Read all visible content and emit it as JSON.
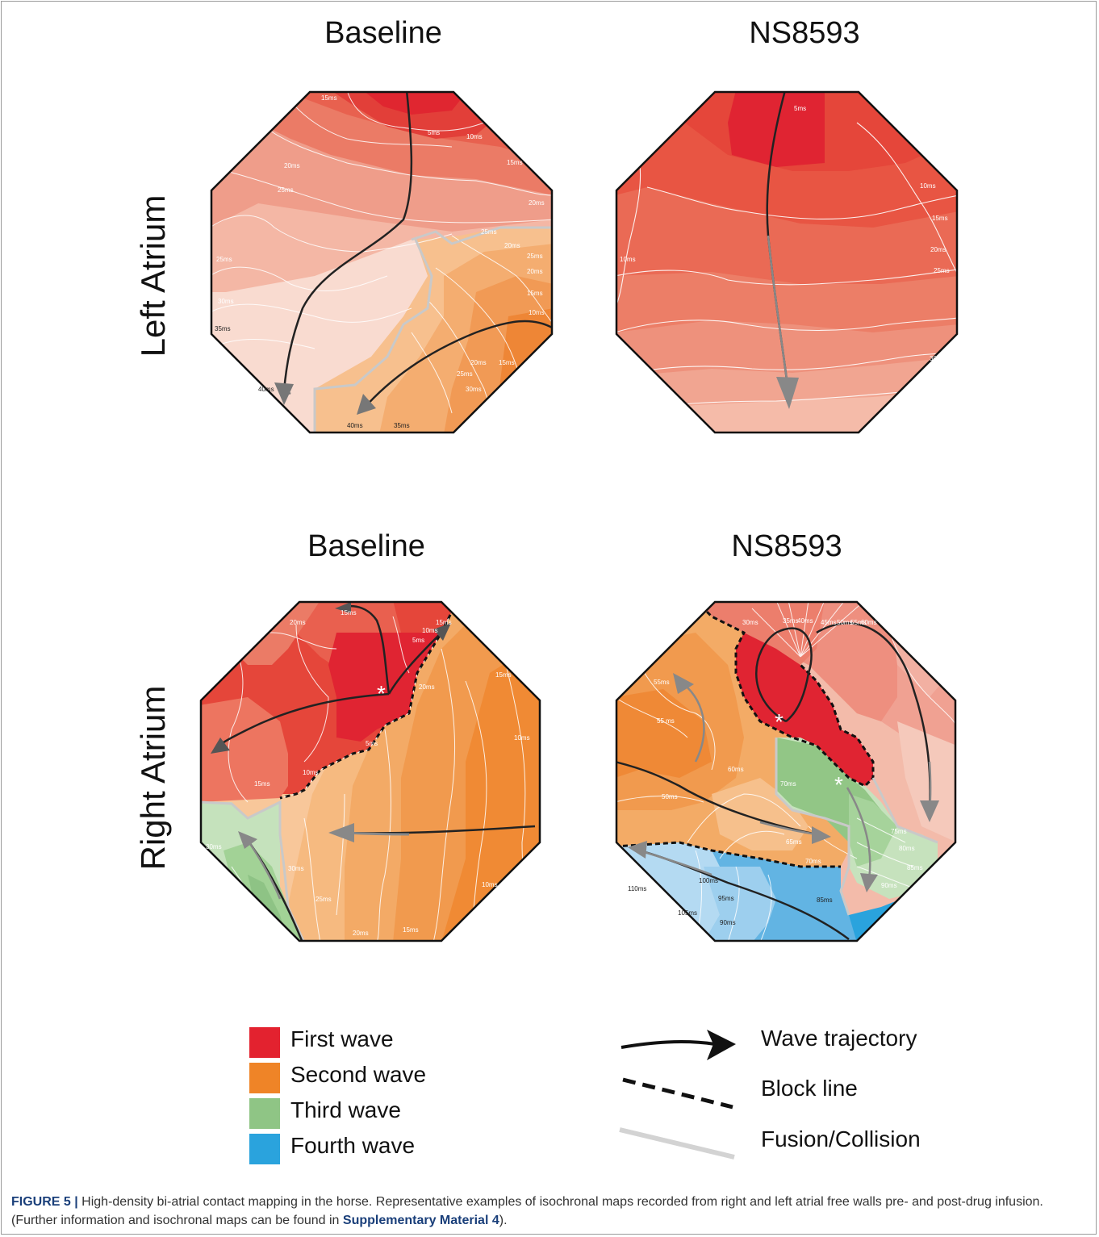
{
  "columns": {
    "left": "Baseline",
    "right": "NS8593",
    "left_bottom": "Baseline",
    "right_bottom": "NS8593"
  },
  "rows": {
    "top": "Left Atrium",
    "bottom": "Right Atrium"
  },
  "colors": {
    "first_wave": "#e3222f",
    "second_wave": "#ef8427",
    "third_wave": "#8fc585",
    "fourth_wave": "#2aa3dd"
  },
  "maps": {
    "la_baseline": {
      "labels": [
        "15ms",
        "5ms",
        "10ms",
        "15ms",
        "20ms",
        "20ms",
        "25ms",
        "20ms",
        "25ms",
        "25ms",
        "25ms",
        "20ms",
        "15ms",
        "10ms",
        "30ms",
        "35ms",
        "20ms",
        "15ms",
        "25ms",
        "30ms",
        "40ms",
        "40ms",
        "35ms"
      ]
    },
    "la_ns8593": {
      "labels": [
        "5ms",
        "10ms",
        "15ms",
        "10ms",
        "20ms",
        "25ms",
        "30ms",
        "35ms"
      ]
    },
    "ra_baseline": {
      "labels": [
        "20ms",
        "15ms",
        "15ms",
        "10ms",
        "5ms",
        "15ms",
        "20ms",
        "5ms",
        "10ms",
        "15ms",
        "10ms",
        "30ms",
        "30ms",
        "25ms",
        "20ms",
        "15ms",
        "10ms"
      ]
    },
    "ra_ns8593": {
      "labels": [
        "30ms",
        "35ms",
        "40ms",
        "45ms",
        "50ms",
        "55ms",
        "60ms",
        "55ms",
        "50ms",
        "55 ms",
        "60ms",
        "65ms",
        "70ms",
        "70ms",
        "75ms",
        "80ms",
        "85ms",
        "90ms",
        "110ms",
        "100ms",
        "95ms",
        "105ms",
        "90ms",
        "85ms"
      ]
    }
  },
  "legend": {
    "first": "First wave",
    "second": "Second wave",
    "third": "Third wave",
    "fourth": "Fourth wave",
    "trajectory": "Wave trajectory",
    "block": "Block line",
    "fusion": "Fusion/Collision"
  },
  "caption": {
    "label": "FIGURE 5 |",
    "text": " High-density bi-atrial contact mapping in the horse. Representative examples of isochronal maps recorded from right and left atrial free walls pre- and post-drug infusion. (Further information and isochronal maps can be found in ",
    "link": "Supplementary Material 4",
    "end": ")."
  }
}
